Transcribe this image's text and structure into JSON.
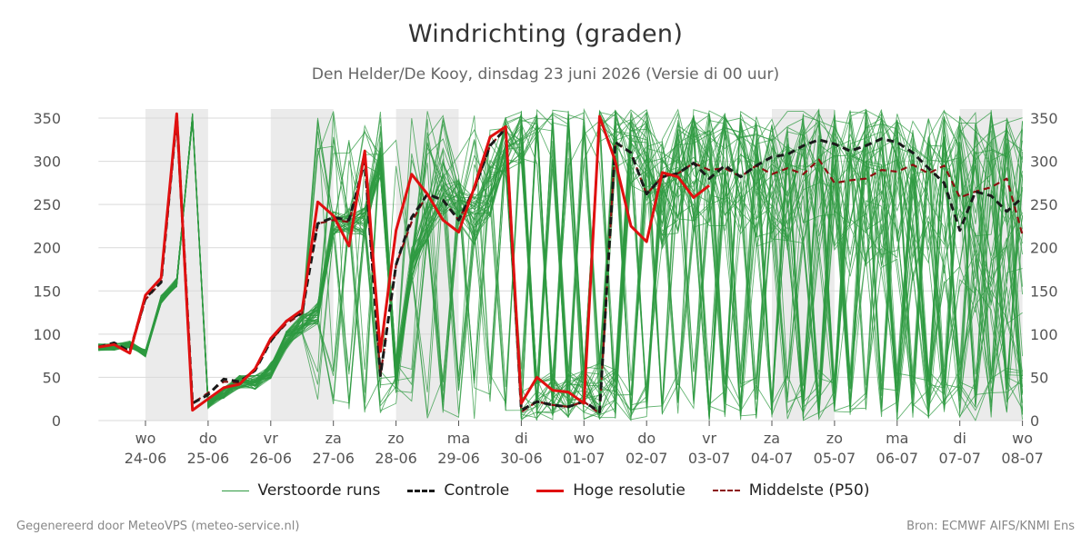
{
  "title": "Windrichting (graden)",
  "subtitle": "Den Helder/De Kooy, dinsdag 23 juni 2026 (Versie di 00 uur)",
  "footer": {
    "left": "Gegenereerd door MeteoVPS (meteo-service.nl)",
    "right": "Bron: ECMWF AIFS/KNMI Ens"
  },
  "colors": {
    "ensemble": "#2e9a40",
    "control": "#1a1a1a",
    "high_res": "#e01010",
    "median": "#8b1010",
    "weekend_band": "#ebebeb"
  },
  "legend": [
    {
      "label": "Verstoorde runs",
      "style": "thin-green"
    },
    {
      "label": "Controle",
      "style": "dashed-black"
    },
    {
      "label": "Hoge resolutie",
      "style": "solid-red"
    },
    {
      "label": "Middelste (P50)",
      "style": "dashed-darkred"
    }
  ],
  "chart_data": {
    "type": "line",
    "title": "Windrichting (graden)",
    "ylim": [
      0,
      360
    ],
    "yticks": [
      0,
      50,
      100,
      150,
      200,
      250,
      300,
      350
    ],
    "xlim": [
      -0.75,
      14
    ],
    "grid": true,
    "legend_position": "bottom",
    "x_ticks": [
      {
        "day": "wo",
        "date": "24-06"
      },
      {
        "day": "do",
        "date": "25-06"
      },
      {
        "day": "vr",
        "date": "26-06"
      },
      {
        "day": "za",
        "date": "27-06"
      },
      {
        "day": "zo",
        "date": "28-06"
      },
      {
        "day": "ma",
        "date": "29-06"
      },
      {
        "day": "di",
        "date": "30-06"
      },
      {
        "day": "wo",
        "date": "01-07"
      },
      {
        "day": "do",
        "date": "02-07"
      },
      {
        "day": "vr",
        "date": "03-07"
      },
      {
        "day": "za",
        "date": "04-07"
      },
      {
        "day": "zo",
        "date": "05-07"
      },
      {
        "day": "ma",
        "date": "06-07"
      },
      {
        "day": "di",
        "date": "07-07"
      },
      {
        "day": "wo",
        "date": "08-07"
      }
    ],
    "shaded_days": [
      [
        0,
        1
      ],
      [
        2,
        3
      ],
      [
        4,
        5
      ],
      [
        10,
        11
      ],
      [
        13,
        14
      ]
    ],
    "series": [
      {
        "name": "Hoge resolutie",
        "x": [
          -0.75,
          -0.5,
          -0.25,
          0,
          0.25,
          0.5,
          0.75,
          1,
          1.25,
          1.5,
          1.75,
          2,
          2.25,
          2.5,
          2.75,
          3,
          3.25,
          3.5,
          3.75,
          4,
          4.25,
          4.5,
          4.75,
          5,
          5.25,
          5.5,
          5.75,
          6,
          6.25,
          6.5,
          6.75,
          7,
          7.25,
          7.5,
          7.75,
          8,
          8.25,
          8.5,
          8.75,
          9
        ],
        "y": [
          85,
          88,
          78,
          145,
          165,
          355,
          12,
          25,
          38,
          42,
          60,
          95,
          115,
          128,
          253,
          237,
          202,
          312,
          80,
          220,
          285,
          262,
          232,
          218,
          270,
          328,
          340,
          20,
          50,
          35,
          33,
          20,
          352,
          300,
          225,
          207,
          287,
          282,
          258,
          272
        ]
      },
      {
        "name": "Controle",
        "x": [
          -0.75,
          -0.5,
          -0.25,
          0,
          0.25,
          0.5,
          0.75,
          1,
          1.25,
          1.5,
          1.75,
          2,
          2.25,
          2.5,
          2.75,
          3,
          3.25,
          3.5,
          3.75,
          4,
          4.25,
          4.5,
          4.75,
          5,
          5.25,
          5.5,
          5.75,
          6,
          6.25,
          6.5,
          6.75,
          7,
          7.25,
          7.5,
          7.75,
          8,
          8.25,
          8.5,
          8.75,
          9,
          9.25,
          9.5,
          9.75,
          10,
          10.25,
          10.5,
          10.75,
          11,
          11.25,
          11.5,
          11.75,
          12,
          12.25,
          12.5,
          12.75,
          13,
          13.25,
          13.5,
          13.75,
          14
        ],
        "y": [
          85,
          90,
          80,
          142,
          160,
          352,
          20,
          30,
          48,
          45,
          58,
          92,
          115,
          125,
          228,
          235,
          232,
          300,
          52,
          180,
          235,
          262,
          255,
          232,
          268,
          318,
          338,
          12,
          22,
          18,
          16,
          22,
          10,
          322,
          310,
          262,
          282,
          286,
          298,
          280,
          295,
          282,
          295,
          305,
          308,
          318,
          325,
          320,
          312,
          318,
          326,
          322,
          310,
          292,
          275,
          220,
          265,
          260,
          242,
          258
        ]
      },
      {
        "name": "Middelste (P50)",
        "x": [
          -0.75,
          -0.5,
          -0.25,
          0,
          0.25,
          0.5,
          0.75,
          1,
          1.25,
          1.5,
          1.75,
          2,
          2.25,
          2.5,
          2.75,
          3,
          3.25,
          3.5,
          3.75,
          4,
          4.25,
          4.5,
          4.75,
          5,
          5.25,
          5.5,
          5.75,
          6,
          6.25,
          6.5,
          6.75,
          7,
          7.25,
          7.5,
          7.75,
          8,
          8.25,
          8.5,
          8.75,
          9,
          9.25,
          9.5,
          9.75,
          10,
          10.25,
          10.5,
          10.75,
          11,
          11.25,
          11.5,
          11.75,
          12,
          12.25,
          12.5,
          12.75,
          13,
          13.25,
          13.5,
          13.75,
          14
        ],
        "y": [
          85,
          88,
          78,
          140,
          160,
          350,
          20,
          32,
          45,
          44,
          58,
          93,
          112,
          124,
          228,
          232,
          230,
          300,
          52,
          180,
          230,
          262,
          255,
          232,
          268,
          318,
          338,
          10,
          22,
          18,
          16,
          22,
          8,
          322,
          310,
          262,
          282,
          286,
          298,
          290,
          292,
          282,
          295,
          285,
          292,
          285,
          302,
          275,
          278,
          280,
          290,
          288,
          296,
          286,
          295,
          258,
          265,
          270,
          280,
          215
        ]
      }
    ],
    "ensemble_members": 50
  }
}
